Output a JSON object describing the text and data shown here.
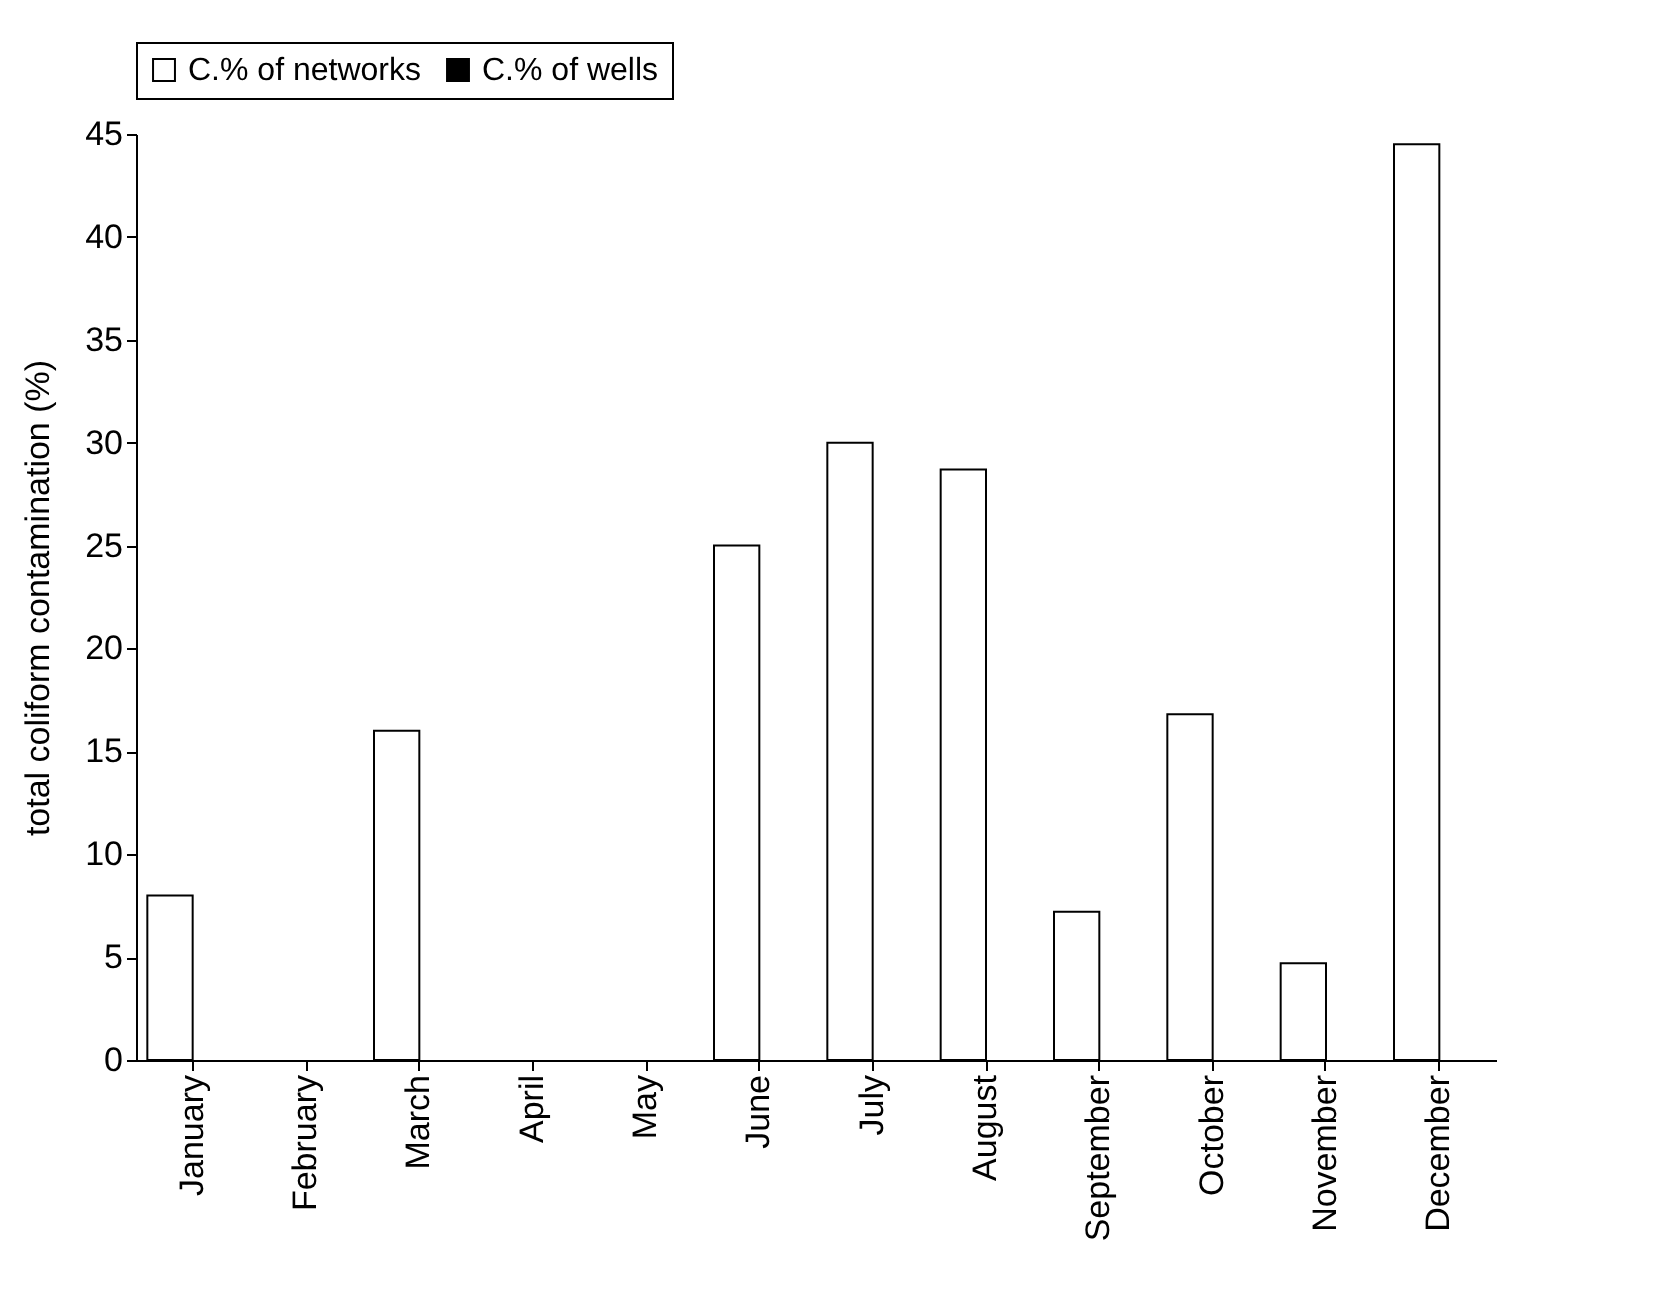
{
  "chart_data": {
    "type": "bar",
    "ylabel": "total coliform contamination (%)",
    "categories": [
      "January",
      "February",
      "March",
      "April",
      "May",
      "June",
      "July",
      "August",
      "September",
      "October",
      "November",
      "December"
    ],
    "series": [
      {
        "name": "C.% of networks",
        "color": "#ffffff",
        "values": [
          8,
          0,
          16,
          0,
          0,
          25,
          30,
          28.7,
          7.2,
          16.8,
          4.7,
          44.5
        ]
      },
      {
        "name": "C.% of wells",
        "color": "#000000",
        "values": [
          0,
          0,
          0,
          0,
          0,
          0,
          0,
          0,
          0,
          0,
          0,
          0
        ]
      }
    ],
    "ylim": [
      0,
      45
    ],
    "yticks": [
      0,
      5,
      10,
      15,
      20,
      25,
      30,
      35,
      40,
      45
    ],
    "grid": false,
    "legend": "top"
  }
}
